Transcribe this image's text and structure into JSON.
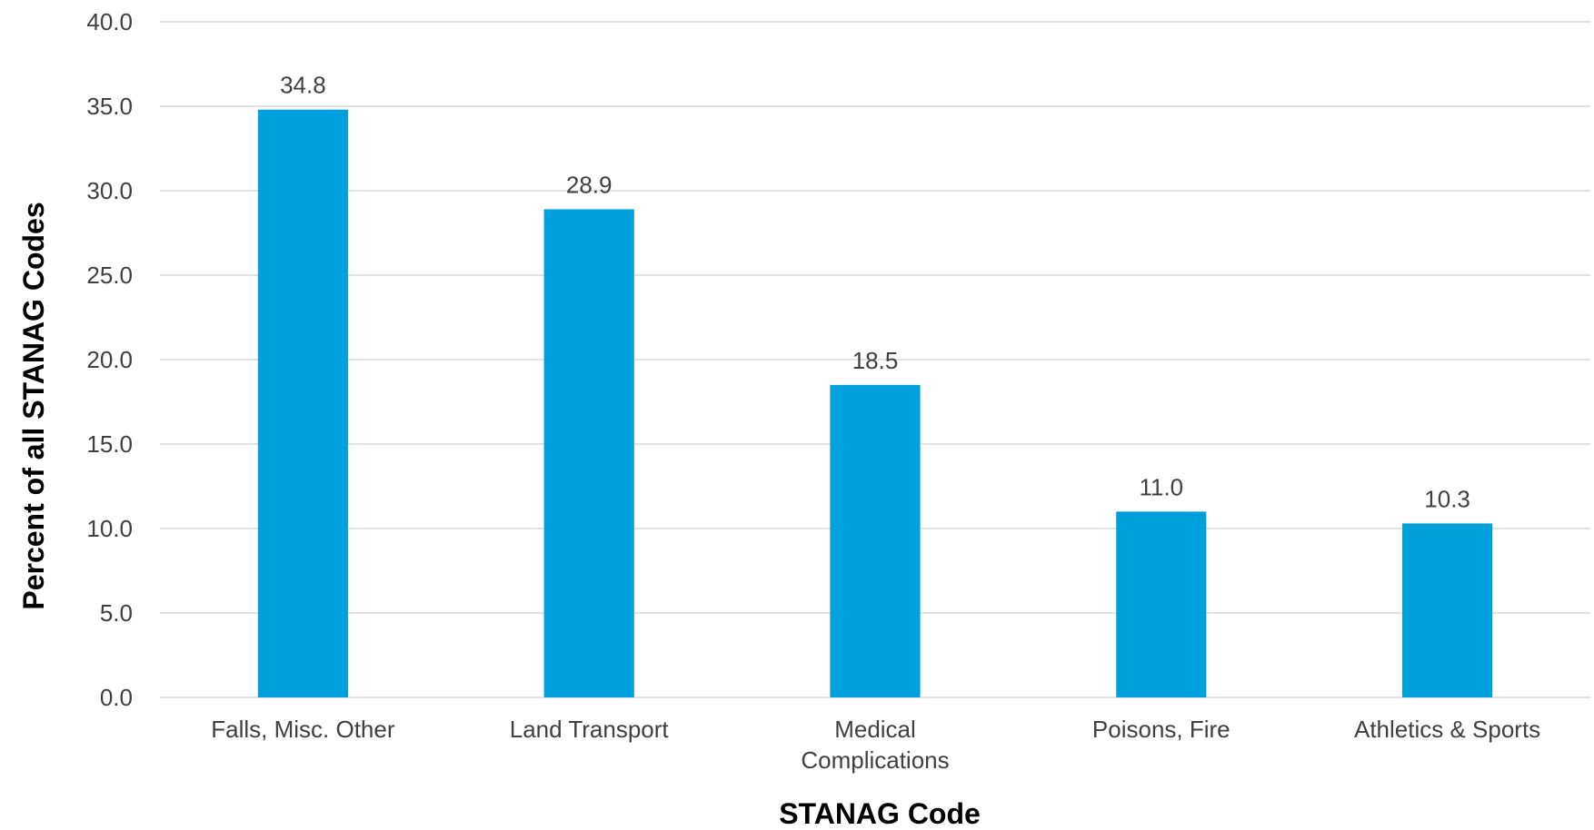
{
  "chart_data": {
    "type": "bar",
    "title": "",
    "xlabel": "STANAG Code",
    "ylabel": "Percent of all STANAG Codes",
    "categories": [
      "Falls, Misc. Other",
      "Land Transport",
      "Medical Complications",
      "Poisons, Fire",
      "Athletics & Sports"
    ],
    "category_lines": [
      [
        "Falls, Misc. Other"
      ],
      [
        "Land Transport"
      ],
      [
        "Medical",
        "Complications"
      ],
      [
        "Poisons, Fire"
      ],
      [
        "Athletics & Sports"
      ]
    ],
    "values": [
      34.8,
      28.9,
      18.5,
      11.0,
      10.3
    ],
    "value_labels": [
      "34.8",
      "28.9",
      "18.5",
      "11.0",
      "10.3"
    ],
    "ylim": [
      0,
      40
    ],
    "yticks": [
      0,
      5,
      10,
      15,
      20,
      25,
      30,
      35,
      40
    ],
    "ytick_labels": [
      "0.0",
      "5.0",
      "10.0",
      "15.0",
      "20.0",
      "25.0",
      "30.0",
      "35.0",
      "40.0"
    ],
    "grid": true,
    "legend": "none",
    "bar_color": "#00a0dc"
  }
}
